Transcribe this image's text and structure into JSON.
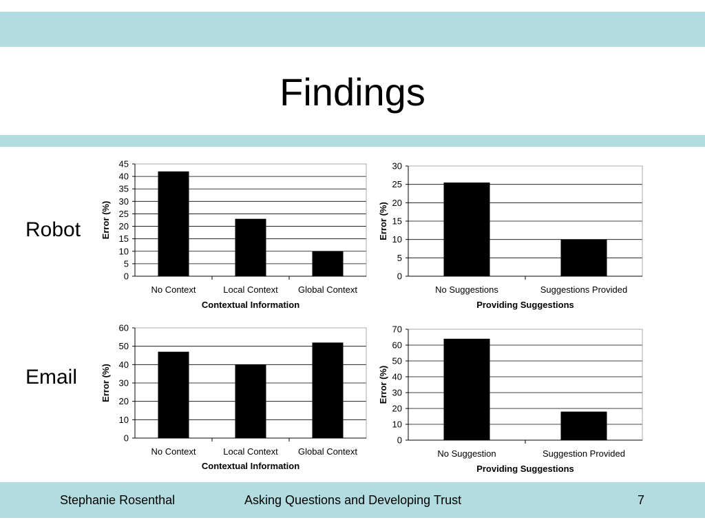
{
  "slide": {
    "title": "Findings",
    "row_labels": {
      "robot": "Robot",
      "email": "Email"
    },
    "footer": {
      "author": "Stephanie Rosenthal",
      "talk_title": "Asking Questions and Developing Trust",
      "page_number": "7"
    },
    "colors": {
      "band": "#b3dce0",
      "bar": "#000000",
      "grid": "#000000"
    }
  },
  "chart_data": [
    {
      "type": "bar",
      "categories": [
        "No Context",
        "Local Context",
        "Global Context"
      ],
      "values": [
        42,
        23,
        10
      ],
      "ylim": [
        0,
        45
      ],
      "yticks": [
        0,
        5,
        10,
        15,
        20,
        25,
        30,
        35,
        40,
        45
      ],
      "xlabel": "Contextual Information",
      "ylabel": "Error (%)",
      "grid": true
    },
    {
      "type": "bar",
      "categories": [
        "No Suggestions",
        "Suggestions Provided"
      ],
      "values": [
        25.5,
        10
      ],
      "ylim": [
        0,
        30
      ],
      "yticks": [
        0,
        5,
        10,
        15,
        20,
        25,
        30
      ],
      "xlabel": "Providing Suggestions",
      "ylabel": "Error (%)",
      "grid": true
    },
    {
      "type": "bar",
      "categories": [
        "No Context",
        "Local Context",
        "Global Context"
      ],
      "values": [
        47,
        40,
        52
      ],
      "ylim": [
        0,
        60
      ],
      "yticks": [
        0,
        10,
        20,
        30,
        40,
        50,
        60
      ],
      "xlabel": "Contextual Information",
      "ylabel": "Error (%)",
      "grid": true
    },
    {
      "type": "bar",
      "categories": [
        "No Suggestion",
        "Suggestion Provided"
      ],
      "values": [
        64,
        18
      ],
      "ylim": [
        0,
        70
      ],
      "yticks": [
        0,
        10,
        20,
        30,
        40,
        50,
        60,
        70
      ],
      "xlabel": "Providing Suggestions",
      "ylabel": "Error (%)",
      "grid": true
    }
  ]
}
